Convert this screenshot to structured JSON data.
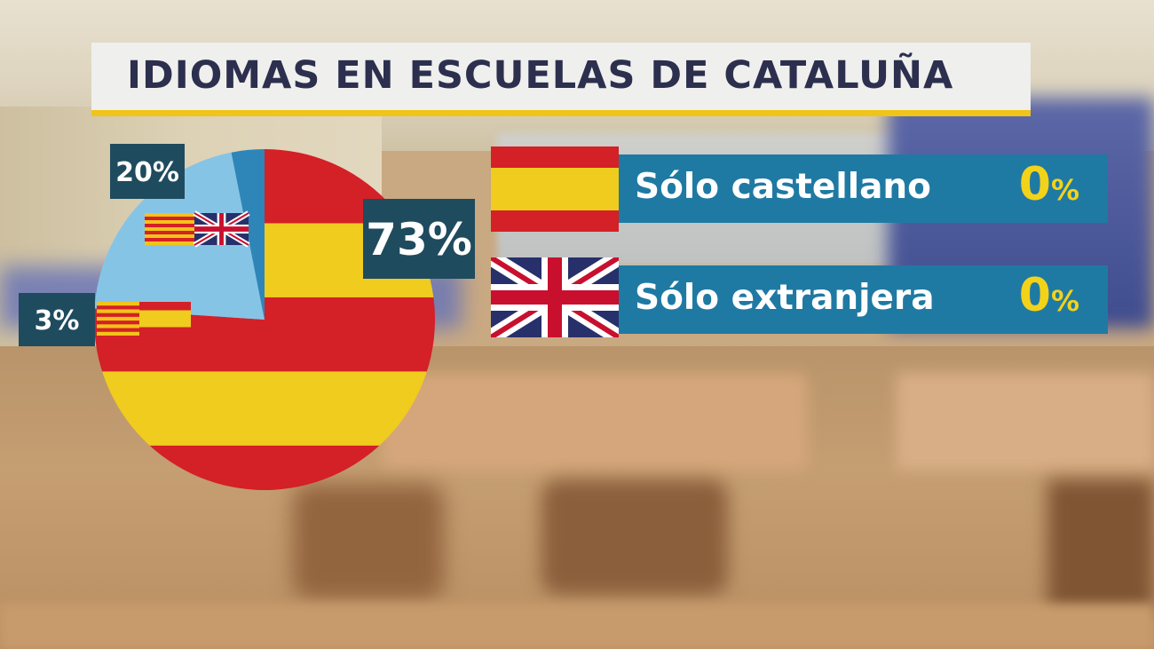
{
  "title": "IDIOMAS EN ESCUELAS DE CATALUÑA",
  "chart_data": {
    "type": "pie",
    "slices": [
      {
        "label": "73%",
        "value": 73,
        "flags": [
          "spain"
        ],
        "color_pattern": "spain"
      },
      {
        "label": "20%",
        "value": 20,
        "flags": [
          "catalonia",
          "uk"
        ],
        "color": "#86c4e6"
      },
      {
        "label": "3%",
        "value": 3,
        "flags": [
          "catalonia",
          "spain"
        ],
        "color": "#2e86b8"
      }
    ]
  },
  "rows": [
    {
      "flag": "spain",
      "text": "Sólo castellano",
      "value": "0",
      "unit": "%"
    },
    {
      "flag": "uk",
      "text": "Sólo extranjera",
      "value": "0",
      "unit": "%"
    }
  ],
  "colors": {
    "title_bg": "#efefed",
    "title_text": "#2c2f4e",
    "title_underline": "#f0c419",
    "label_box": "#1f4b5e",
    "row_bar": "#1f7aa3",
    "pct_yellow": "#f3d21a",
    "spain_red": "#d42027",
    "spain_yellow": "#efcc1e",
    "light_blue": "#86c4e6",
    "mid_blue": "#2e86b8"
  }
}
